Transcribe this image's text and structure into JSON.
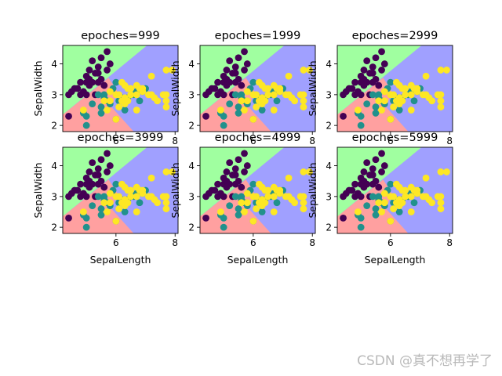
{
  "figure": {
    "colors": {
      "region_setosa": "#a0ffa0",
      "region_versicolor": "#ffa0a0",
      "region_virginica": "#a0a0ff",
      "point_setosa": "#440154",
      "point_versicolor": "#21918c",
      "point_virginica": "#fde725",
      "axis": "#000000"
    }
  },
  "chart_data": [
    {
      "type": "scatter",
      "title": "epoches=999",
      "xlabel": "",
      "ylabel": "SepalWidth",
      "xlim": [
        4.2,
        8.1
      ],
      "ylim": [
        1.8,
        4.6
      ],
      "xticks": [
        "6",
        "8"
      ],
      "yticks": [
        "2",
        "3",
        "4"
      ],
      "decision_regions": [
        "green",
        "red",
        "blue"
      ],
      "grid": false,
      "legend": "none"
    },
    {
      "type": "scatter",
      "title": "epoches=1999",
      "xlabel": "",
      "ylabel": "SepalWidth",
      "xlim": [
        4.2,
        8.1
      ],
      "ylim": [
        1.8,
        4.6
      ],
      "xticks": [
        "6",
        "8"
      ],
      "yticks": [
        "2",
        "3",
        "4"
      ],
      "decision_regions": [
        "green",
        "red",
        "blue"
      ],
      "grid": false,
      "legend": "none"
    },
    {
      "type": "scatter",
      "title": "epoches=2999",
      "xlabel": "",
      "ylabel": "SepalWidth",
      "xlim": [
        4.2,
        8.1
      ],
      "ylim": [
        1.8,
        4.6
      ],
      "xticks": [
        "6",
        "8"
      ],
      "yticks": [
        "2",
        "3",
        "4"
      ],
      "decision_regions": [
        "green",
        "red",
        "blue"
      ],
      "grid": false,
      "legend": "none"
    },
    {
      "type": "scatter",
      "title": "epoches=3999",
      "xlabel": "SepalLength",
      "ylabel": "SepalWidth",
      "xlim": [
        4.2,
        8.1
      ],
      "ylim": [
        1.8,
        4.6
      ],
      "xticks": [
        "6",
        "8"
      ],
      "yticks": [
        "2",
        "3",
        "4"
      ],
      "decision_regions": [
        "green",
        "red",
        "blue"
      ],
      "grid": false,
      "legend": "none"
    },
    {
      "type": "scatter",
      "title": "epoches=4999",
      "xlabel": "SepalLength",
      "ylabel": "SepalWidth",
      "xlim": [
        4.2,
        8.1
      ],
      "ylim": [
        1.8,
        4.6
      ],
      "xticks": [
        "6",
        "8"
      ],
      "yticks": [
        "2",
        "3",
        "4"
      ],
      "decision_regions": [
        "green",
        "red",
        "blue"
      ],
      "grid": false,
      "legend": "none"
    },
    {
      "type": "scatter",
      "title": "epoches=5999",
      "xlabel": "SepalLength",
      "ylabel": "SepalWidth",
      "xlim": [
        4.2,
        8.1
      ],
      "ylim": [
        1.8,
        4.6
      ],
      "xticks": [
        "6",
        "8"
      ],
      "yticks": [
        "2",
        "3",
        "4"
      ],
      "decision_regions": [
        "green",
        "red",
        "blue"
      ],
      "grid": false,
      "legend": "none"
    }
  ],
  "points": [
    {
      "x": 4.4,
      "y": 2.3,
      "c": 0
    },
    {
      "x": 4.4,
      "y": 3.0,
      "c": 0
    },
    {
      "x": 4.6,
      "y": 3.2,
      "c": 0
    },
    {
      "x": 4.7,
      "y": 3.2,
      "c": 0
    },
    {
      "x": 4.8,
      "y": 3.0,
      "c": 0
    },
    {
      "x": 4.9,
      "y": 3.1,
      "c": 0
    },
    {
      "x": 5.0,
      "y": 3.4,
      "c": 0
    },
    {
      "x": 5.0,
      "y": 3.0,
      "c": 0
    },
    {
      "x": 5.1,
      "y": 3.5,
      "c": 0
    },
    {
      "x": 5.1,
      "y": 3.8,
      "c": 0
    },
    {
      "x": 5.2,
      "y": 3.4,
      "c": 0
    },
    {
      "x": 5.3,
      "y": 3.7,
      "c": 0
    },
    {
      "x": 5.4,
      "y": 3.9,
      "c": 0
    },
    {
      "x": 5.4,
      "y": 3.4,
      "c": 0
    },
    {
      "x": 5.5,
      "y": 3.5,
      "c": 0
    },
    {
      "x": 5.7,
      "y": 3.8,
      "c": 0
    },
    {
      "x": 5.7,
      "y": 4.4,
      "c": 0
    },
    {
      "x": 5.8,
      "y": 4.0,
      "c": 0
    },
    {
      "x": 5.2,
      "y": 4.1,
      "c": 0
    },
    {
      "x": 5.5,
      "y": 4.2,
      "c": 0
    },
    {
      "x": 5.0,
      "y": 3.6,
      "c": 0
    },
    {
      "x": 4.8,
      "y": 3.4,
      "c": 0
    },
    {
      "x": 5.1,
      "y": 3.3,
      "c": 0
    },
    {
      "x": 5.4,
      "y": 3.7,
      "c": 0
    },
    {
      "x": 5.6,
      "y": 3.3,
      "c": 0
    },
    {
      "x": 4.5,
      "y": 3.1,
      "c": 0
    },
    {
      "x": 5.3,
      "y": 3.0,
      "c": 0
    },
    {
      "x": 5.0,
      "y": 2.0,
      "c": 1
    },
    {
      "x": 4.9,
      "y": 2.4,
      "c": 1
    },
    {
      "x": 5.0,
      "y": 2.3,
      "c": 1
    },
    {
      "x": 5.2,
      "y": 2.7,
      "c": 1
    },
    {
      "x": 5.5,
      "y": 2.4,
      "c": 1
    },
    {
      "x": 5.5,
      "y": 2.6,
      "c": 1
    },
    {
      "x": 5.6,
      "y": 2.9,
      "c": 1
    },
    {
      "x": 5.7,
      "y": 2.8,
      "c": 1
    },
    {
      "x": 5.8,
      "y": 2.7,
      "c": 1
    },
    {
      "x": 6.0,
      "y": 2.2,
      "c": 1
    },
    {
      "x": 6.0,
      "y": 3.4,
      "c": 1
    },
    {
      "x": 6.1,
      "y": 2.8,
      "c": 1
    },
    {
      "x": 6.2,
      "y": 2.9,
      "c": 1
    },
    {
      "x": 6.3,
      "y": 2.5,
      "c": 1
    },
    {
      "x": 6.4,
      "y": 2.9,
      "c": 1
    },
    {
      "x": 6.6,
      "y": 3.0,
      "c": 1
    },
    {
      "x": 6.7,
      "y": 3.1,
      "c": 1
    },
    {
      "x": 6.9,
      "y": 3.1,
      "c": 1
    },
    {
      "x": 7.0,
      "y": 3.2,
      "c": 1
    },
    {
      "x": 5.9,
      "y": 3.2,
      "c": 1
    },
    {
      "x": 5.6,
      "y": 3.0,
      "c": 1
    },
    {
      "x": 6.8,
      "y": 2.8,
      "c": 1
    },
    {
      "x": 5.4,
      "y": 3.0,
      "c": 1
    },
    {
      "x": 4.9,
      "y": 2.5,
      "c": 2
    },
    {
      "x": 5.6,
      "y": 2.8,
      "c": 2
    },
    {
      "x": 5.8,
      "y": 2.8,
      "c": 2
    },
    {
      "x": 6.0,
      "y": 3.0,
      "c": 2
    },
    {
      "x": 6.1,
      "y": 3.0,
      "c": 2
    },
    {
      "x": 6.2,
      "y": 3.4,
      "c": 2
    },
    {
      "x": 6.3,
      "y": 3.3,
      "c": 2
    },
    {
      "x": 6.3,
      "y": 2.9,
      "c": 2
    },
    {
      "x": 6.4,
      "y": 3.2,
      "c": 2
    },
    {
      "x": 6.5,
      "y": 3.0,
      "c": 2
    },
    {
      "x": 6.5,
      "y": 3.2,
      "c": 2
    },
    {
      "x": 6.7,
      "y": 3.3,
      "c": 2
    },
    {
      "x": 6.7,
      "y": 2.5,
      "c": 2
    },
    {
      "x": 6.9,
      "y": 3.2,
      "c": 2
    },
    {
      "x": 7.1,
      "y": 3.0,
      "c": 2
    },
    {
      "x": 7.2,
      "y": 3.6,
      "c": 2
    },
    {
      "x": 7.2,
      "y": 3.0,
      "c": 2
    },
    {
      "x": 7.3,
      "y": 2.9,
      "c": 2
    },
    {
      "x": 7.4,
      "y": 2.8,
      "c": 2
    },
    {
      "x": 7.6,
      "y": 3.0,
      "c": 2
    },
    {
      "x": 7.7,
      "y": 3.8,
      "c": 2
    },
    {
      "x": 7.9,
      "y": 3.8,
      "c": 2
    },
    {
      "x": 7.7,
      "y": 2.6,
      "c": 2
    },
    {
      "x": 7.7,
      "y": 2.8,
      "c": 2
    },
    {
      "x": 7.7,
      "y": 3.0,
      "c": 2
    },
    {
      "x": 6.8,
      "y": 3.2,
      "c": 2
    },
    {
      "x": 6.4,
      "y": 2.8,
      "c": 2
    },
    {
      "x": 5.7,
      "y": 2.5,
      "c": 2
    },
    {
      "x": 6.1,
      "y": 2.6,
      "c": 2
    },
    {
      "x": 6.3,
      "y": 2.7,
      "c": 2
    },
    {
      "x": 6.0,
      "y": 2.2,
      "c": 2
    },
    {
      "x": 6.2,
      "y": 2.8,
      "c": 2
    },
    {
      "x": 6.7,
      "y": 3.0,
      "c": 2
    },
    {
      "x": 6.9,
      "y": 3.1,
      "c": 2
    },
    {
      "x": 5.8,
      "y": 3.1,
      "c": 2
    }
  ],
  "watermark": "CSDN @真不想再学了"
}
